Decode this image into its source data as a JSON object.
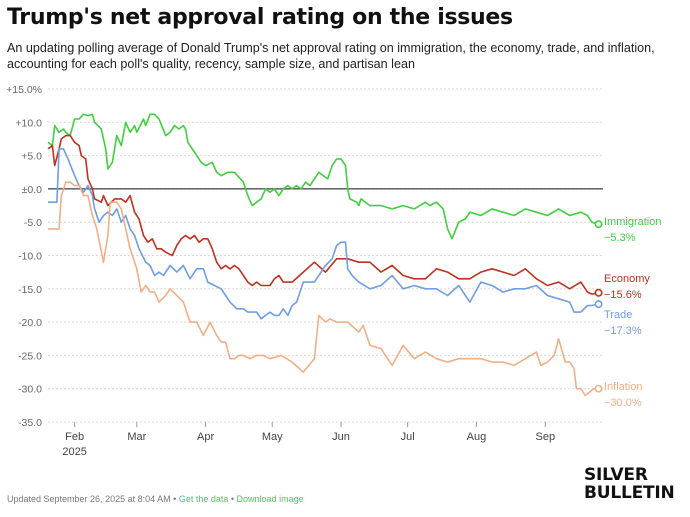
{
  "title": "Trump's net approval rating on the issues",
  "subtitle": "An updating polling average of Donald Trump's net approval rating on immigration, the economy, trade, and inflation, accounting for each poll's quality, recency, sample size, and partisan lean",
  "footer": {
    "updated": "Updated September 26, 2025 at 8:04 AM",
    "sep1": "•",
    "get_data": "Get the data",
    "sep2": "•",
    "download": "Download image"
  },
  "logo": {
    "line1": "SILVER",
    "line2": "BULLETIN"
  },
  "chart_data": {
    "type": "line",
    "x_unit": "days since Jan 20, 2025",
    "xlim": [
      0,
      250
    ],
    "ylim": [
      -35,
      15
    ],
    "y_ticks": [
      {
        "value": 15,
        "label": "+15.0%"
      },
      {
        "value": 10,
        "label": "+10.0"
      },
      {
        "value": 5,
        "label": "+5.0"
      },
      {
        "value": 0,
        "label": "±0.0"
      },
      {
        "value": -5,
        "label": "-5.0"
      },
      {
        "value": -10,
        "label": "-10.0"
      },
      {
        "value": -15,
        "label": "-15.0"
      },
      {
        "value": -20,
        "label": "-20.0"
      },
      {
        "value": -25,
        "label": "-25.0"
      },
      {
        "value": -30,
        "label": "-30.0"
      },
      {
        "value": -35,
        "label": "-35.0"
      }
    ],
    "x_ticks": [
      {
        "value": 12,
        "label": "Feb",
        "sublabel": "2025"
      },
      {
        "value": 40,
        "label": "Mar",
        "sublabel": ""
      },
      {
        "value": 71,
        "label": "Apr",
        "sublabel": ""
      },
      {
        "value": 101,
        "label": "May",
        "sublabel": ""
      },
      {
        "value": 132,
        "label": "Jun",
        "sublabel": ""
      },
      {
        "value": 162,
        "label": "Jul",
        "sublabel": ""
      },
      {
        "value": 193,
        "label": "Aug",
        "sublabel": ""
      },
      {
        "value": 224,
        "label": "Sep",
        "sublabel": ""
      }
    ],
    "zero_line": 0,
    "series": [
      {
        "name": "Immigration",
        "final_label": "−5.3%",
        "color": "#3fcf3f",
        "x": [
          0,
          2,
          3,
          5,
          7,
          8,
          10,
          12,
          14,
          16,
          18,
          20,
          21,
          24,
          26,
          27,
          29,
          31,
          33,
          35,
          37,
          39,
          40,
          43,
          44,
          46,
          48,
          50,
          53,
          55,
          57,
          59,
          61,
          62,
          63,
          65,
          67,
          69,
          71,
          74,
          76,
          78,
          81,
          84,
          88,
          90,
          92,
          94,
          96,
          98,
          100,
          102,
          104,
          106,
          108,
          110,
          112,
          114,
          116,
          118,
          120,
          122,
          124,
          126,
          128,
          130,
          132,
          134,
          135,
          136,
          139,
          140,
          141,
          145,
          150,
          155,
          160,
          165,
          170,
          172,
          175,
          178,
          180,
          182,
          185,
          188,
          190,
          195,
          200,
          205,
          210,
          215,
          220,
          225,
          230,
          235,
          240,
          243,
          245,
          248
        ],
        "values": [
          7,
          6.5,
          9.5,
          8.5,
          9,
          8.5,
          8,
          10.5,
          10.5,
          11.2,
          11,
          11.2,
          10,
          9,
          6,
          3,
          4,
          8,
          6.5,
          10,
          8.5,
          9.5,
          8.5,
          10.5,
          9.5,
          11.2,
          11.2,
          10.5,
          8,
          8.5,
          9.5,
          9,
          9.5,
          9,
          7,
          6,
          5,
          4,
          3.5,
          4,
          2.5,
          2,
          2.5,
          2.5,
          1,
          -1,
          -2.5,
          -2,
          -1.5,
          0,
          -0.5,
          0,
          -1,
          0,
          0.5,
          0,
          0.5,
          0,
          1,
          0.5,
          1.5,
          2.5,
          2,
          1.5,
          3.5,
          4.5,
          4.5,
          3.5,
          0,
          -1.5,
          -2,
          -2.5,
          -1.5,
          -2.5,
          -2.5,
          -3,
          -2.5,
          -3,
          -2,
          -2.5,
          -2,
          -3,
          -6,
          -7.5,
          -5,
          -4.5,
          -3.5,
          -4,
          -3,
          -3.5,
          -4,
          -3,
          -3.5,
          -4,
          -3,
          -4,
          -3.5,
          -4,
          -5,
          -5.3
        ]
      },
      {
        "name": "Economy",
        "final_label": "−15.6%",
        "color": "#c0311f",
        "x": [
          0,
          2,
          3,
          5,
          6,
          8,
          10,
          12,
          14,
          15,
          17,
          18,
          20,
          21,
          24,
          25,
          27,
          30,
          33,
          35,
          37,
          39,
          41,
          43,
          45,
          47,
          49,
          51,
          53,
          56,
          58,
          60,
          62,
          64,
          66,
          68,
          70,
          72,
          74,
          76,
          78,
          80,
          82,
          84,
          86,
          88,
          90,
          92,
          94,
          96,
          98,
          100,
          102,
          104,
          106,
          110,
          115,
          120,
          125,
          130,
          135,
          140,
          145,
          150,
          155,
          160,
          165,
          170,
          175,
          180,
          185,
          190,
          195,
          200,
          205,
          210,
          215,
          220,
          225,
          230,
          235,
          240,
          243,
          245,
          248
        ],
        "values": [
          6,
          6.5,
          3.5,
          6,
          7.5,
          8,
          8,
          7,
          6.5,
          5,
          4.5,
          1.5,
          0,
          -1.5,
          -2,
          -1,
          -2.5,
          -1.5,
          -1.5,
          -2,
          -1,
          -3.5,
          -4.5,
          -7,
          -8,
          -7.5,
          -9,
          -9,
          -9.5,
          -10,
          -8.5,
          -7.5,
          -7,
          -7.5,
          -7,
          -8,
          -7.5,
          -7.5,
          -9,
          -11,
          -12,
          -11.5,
          -12,
          -11.5,
          -12,
          -13,
          -14,
          -14.5,
          -14,
          -14.5,
          -14.5,
          -14.5,
          -13.5,
          -13,
          -14,
          -14,
          -12.5,
          -11,
          -12.5,
          -10.5,
          -10.5,
          -11,
          -11,
          -12.5,
          -11.5,
          -13,
          -13.5,
          -13.5,
          -12,
          -12.5,
          -13.5,
          -13.5,
          -12.5,
          -12,
          -12.5,
          -13,
          -12,
          -13.5,
          -14.5,
          -14,
          -15,
          -14,
          -15.5,
          -15.8,
          -15.6
        ]
      },
      {
        "name": "Trade",
        "final_label": "−17.3%",
        "color": "#6f9ee3",
        "x": [
          0,
          4,
          5,
          7,
          9,
          12,
          14,
          16,
          18,
          20,
          21,
          23,
          25,
          27,
          29,
          31,
          33,
          35,
          37,
          39,
          41,
          44,
          46,
          48,
          50,
          52,
          55,
          58,
          61,
          64,
          67,
          70,
          72,
          75,
          78,
          80,
          82,
          85,
          88,
          90,
          92,
          94,
          96,
          98,
          100,
          102,
          104,
          106,
          108,
          110,
          112,
          115,
          120,
          125,
          128,
          130,
          132,
          134,
          135,
          137,
          140,
          145,
          150,
          155,
          160,
          165,
          170,
          175,
          180,
          185,
          190,
          195,
          200,
          205,
          210,
          215,
          220,
          225,
          230,
          235,
          237,
          240,
          243,
          245,
          248
        ],
        "values": [
          -2,
          -2,
          6,
          6,
          4.5,
          2,
          0.5,
          -0.5,
          0.5,
          -1,
          -3,
          -5,
          -4,
          -3.5,
          -4,
          -3,
          -5,
          -4,
          -6,
          -7,
          -9,
          -11,
          -11.5,
          -13,
          -12.5,
          -13,
          -11.5,
          -12.5,
          -11.5,
          -13.5,
          -12,
          -12,
          -14,
          -14.5,
          -15,
          -16,
          -17,
          -18,
          -18,
          -18.5,
          -18.5,
          -18.5,
          -19.5,
          -19,
          -18.5,
          -19,
          -19,
          -18,
          -19,
          -17.5,
          -17,
          -14,
          -14,
          -11.5,
          -10.5,
          -8.5,
          -8,
          -8,
          -12,
          -13,
          -14,
          -15,
          -14.5,
          -13,
          -15,
          -14.5,
          -15,
          -15,
          -16,
          -14.5,
          -17,
          -14,
          -14.5,
          -15.5,
          -15,
          -15,
          -14.5,
          -16,
          -16.5,
          -17,
          -18.5,
          -18.5,
          -17.5,
          -17.5,
          -17.3
        ]
      },
      {
        "name": "Inflation",
        "final_label": "−30.0%",
        "color": "#f4ae85",
        "x": [
          0,
          2,
          4,
          5,
          6,
          8,
          10,
          12,
          14,
          16,
          18,
          20,
          22,
          25,
          27,
          28,
          31,
          33,
          35,
          37,
          40,
          42,
          44,
          46,
          48,
          50,
          53,
          55,
          58,
          61,
          64,
          67,
          70,
          73,
          76,
          78,
          80,
          82,
          84,
          86,
          88,
          91,
          94,
          97,
          100,
          105,
          110,
          115,
          120,
          122,
          125,
          127,
          130,
          135,
          140,
          142,
          145,
          150,
          155,
          160,
          165,
          170,
          175,
          180,
          185,
          190,
          195,
          200,
          205,
          210,
          215,
          220,
          222,
          225,
          228,
          230,
          233,
          235,
          237,
          238,
          240,
          242,
          244,
          246,
          248
        ],
        "values": [
          -6,
          -6,
          -6,
          -6,
          -1,
          1,
          1,
          0.5,
          0.5,
          -1,
          -1,
          -4,
          -6,
          -11,
          -7,
          -2,
          -2,
          -3,
          -6,
          -9,
          -12,
          -15.5,
          -14.5,
          -15.5,
          -15.5,
          -17,
          -16,
          -15,
          -16,
          -17,
          -20,
          -20,
          -22,
          -20,
          -22,
          -23,
          -23,
          -25.5,
          -25.5,
          -25,
          -25,
          -25.5,
          -25,
          -25,
          -25.5,
          -25,
          -26,
          -27.5,
          -25.5,
          -19,
          -20,
          -19.5,
          -20,
          -20,
          -21.5,
          -20.5,
          -23.5,
          -24,
          -26.5,
          -23.5,
          -25.5,
          -24.5,
          -25.5,
          -26,
          -25.5,
          -25.5,
          -25.5,
          -26,
          -26,
          -26.5,
          -25.5,
          -24.5,
          -26.5,
          -26,
          -25,
          -22.5,
          -26,
          -26,
          -27,
          -30,
          -30,
          -31,
          -30.5,
          -30,
          -30
        ]
      }
    ]
  }
}
